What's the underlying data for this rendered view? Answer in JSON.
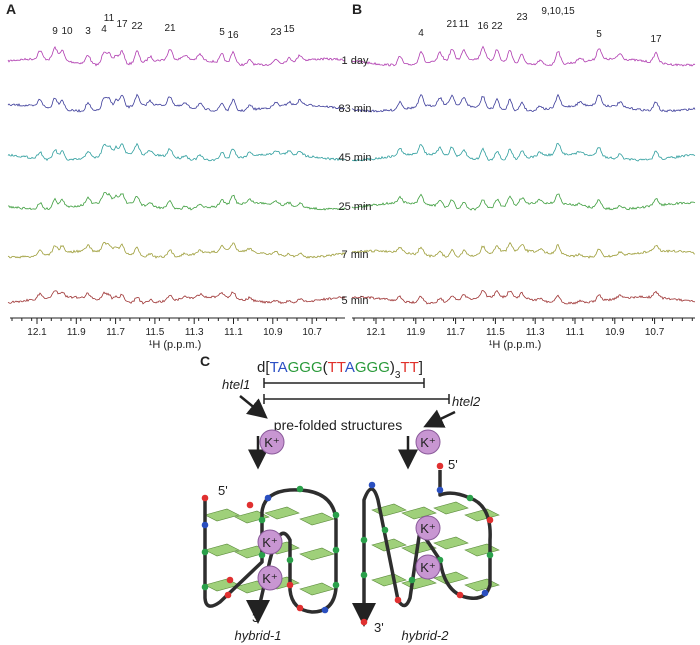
{
  "panel_a": {
    "label": "A",
    "peaks": [
      "9",
      "10",
      "3",
      "4",
      "11",
      "17",
      "22",
      "21",
      "5",
      "16",
      "23",
      "15"
    ],
    "time_labels": [
      "1 day",
      "83 min",
      "45 min",
      "25 min",
      "7 min",
      "5 min"
    ],
    "x_ticks": [
      "12.1",
      "11.9",
      "11.7",
      "11.5",
      "11.3",
      "11.1",
      "10.9",
      "10.7"
    ],
    "x_axis_label": "¹H (p.p.m.)"
  },
  "panel_b": {
    "label": "B",
    "peaks": [
      "4",
      "21",
      "11",
      "16",
      "22",
      "23",
      "9,10,15",
      "5",
      "17"
    ],
    "x_ticks": [
      "12.1",
      "11.9",
      "11.7",
      "11.5",
      "11.3",
      "11.1",
      "10.9",
      "10.7"
    ],
    "x_axis_label": "¹H (p.p.m.)"
  },
  "panel_c": {
    "label": "C",
    "sequence": [
      {
        "text": "d[",
        "color": "#222222"
      },
      {
        "text": "TA",
        "color": "#2b4fc4"
      },
      {
        "text": "GGG",
        "color": "#2a9a3a"
      },
      {
        "text": "(",
        "color": "#222222"
      },
      {
        "text": "TT",
        "color": "#e0302a"
      },
      {
        "text": "A",
        "color": "#2b4fc4"
      },
      {
        "text": "GGG",
        "color": "#2a9a3a"
      },
      {
        "text": ")",
        "color": "#222222"
      },
      {
        "text": "3",
        "color": "#222222",
        "sub": true
      },
      {
        "text": "TT",
        "color": "#e0302a"
      },
      {
        "text": "]",
        "color": "#222222"
      }
    ],
    "htel1": "htel1",
    "htel2": "htel2",
    "prefolded": "pre-folded structures",
    "ion": "K⁺",
    "five_prime": "5'",
    "three_prime": "3'",
    "hybrid1": "hybrid-1",
    "hybrid2": "hybrid-2"
  }
}
